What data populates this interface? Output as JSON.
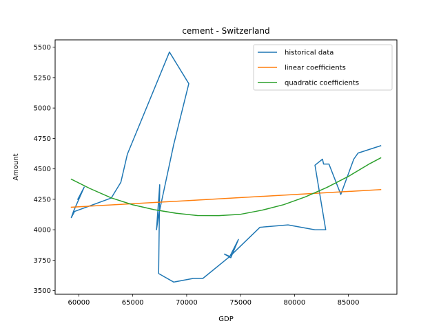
{
  "chart_data": {
    "type": "line",
    "title": "cement - Switzerland",
    "xlabel": "GDP",
    "ylabel": "Amount",
    "xlim": [
      57800,
      89500
    ],
    "ylim": [
      3470,
      5560
    ],
    "xticks": [
      60000,
      65000,
      70000,
      75000,
      80000,
      85000
    ],
    "yticks": [
      3500,
      3750,
      4000,
      4250,
      4500,
      4750,
      5000,
      5250,
      5500
    ],
    "grid": false,
    "legend_position": "top-right",
    "series": [
      {
        "name": "historical data",
        "color": "#1f77b4",
        "x": [
          59900,
          60500,
          59500,
          59300,
          59600,
          63000,
          63900,
          64500,
          68400,
          70200,
          68800,
          67400,
          67200,
          67500,
          67400,
          68800,
          70600,
          71500,
          74000,
          73500,
          74100,
          74800,
          74000,
          76800,
          79400,
          81900,
          82900,
          81900,
          82600,
          82700,
          83200,
          84300,
          85500,
          85900,
          88000
        ],
        "y": [
          4250,
          4350,
          4150,
          4100,
          4150,
          4260,
          4390,
          4620,
          5460,
          5200,
          4700,
          4120,
          4000,
          4370,
          3640,
          3570,
          3600,
          3600,
          3780,
          3800,
          3770,
          3920,
          3780,
          4020,
          4040,
          4000,
          4000,
          4530,
          4580,
          4540,
          4540,
          4290,
          4580,
          4630,
          4690
        ]
      },
      {
        "name": "linear coefficients",
        "color": "#ff7f0e",
        "x": [
          59300,
          88000
        ],
        "y": [
          4185,
          4330
        ]
      },
      {
        "name": "quadratic coefficients",
        "color": "#2ca02c",
        "x": [
          59300,
          61000,
          63000,
          65000,
          67000,
          69000,
          71000,
          73000,
          75000,
          77000,
          79000,
          81000,
          83000,
          85000,
          87000,
          88000
        ],
        "y": [
          4415,
          4340,
          4262,
          4205,
          4165,
          4136,
          4117,
          4116,
          4127,
          4161,
          4206,
          4270,
          4347,
          4438,
          4544,
          4590
        ]
      }
    ]
  }
}
